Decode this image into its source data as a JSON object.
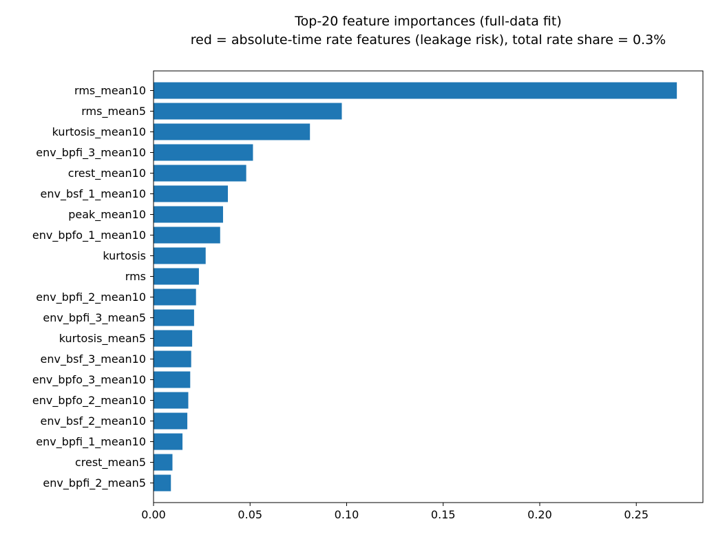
{
  "chart_data": {
    "type": "bar",
    "orientation": "horizontal",
    "title": "Top-20 feature importances (full-data fit)",
    "subtitle": "red = absolute-time rate features (leakage risk), total rate share = 0.3%",
    "xlabel": "",
    "ylabel": "",
    "categories": [
      "rms_mean10",
      "rms_mean5",
      "kurtosis_mean10",
      "env_bpfi_3_mean10",
      "crest_mean10",
      "env_bsf_1_mean10",
      "peak_mean10",
      "env_bpfo_1_mean10",
      "kurtosis",
      "rms",
      "env_bpfi_2_mean10",
      "env_bpfi_3_mean5",
      "kurtosis_mean5",
      "env_bsf_3_mean10",
      "env_bpfo_3_mean10",
      "env_bpfo_2_mean10",
      "env_bsf_2_mean10",
      "env_bpfi_1_mean10",
      "crest_mean5",
      "env_bpfi_2_mean5"
    ],
    "values": [
      0.271,
      0.0975,
      0.081,
      0.0515,
      0.048,
      0.0385,
      0.036,
      0.0345,
      0.027,
      0.0235,
      0.022,
      0.021,
      0.02,
      0.0195,
      0.019,
      0.018,
      0.0175,
      0.015,
      0.0098,
      0.009
    ],
    "xlim": [
      0,
      0.2845
    ],
    "xticks": [
      "0.00",
      "0.05",
      "0.10",
      "0.15",
      "0.20",
      "0.25"
    ],
    "xtick_values": [
      0,
      0.05,
      0.1,
      0.15,
      0.2,
      0.25
    ],
    "bar_color": "#1f77b4",
    "grid": false,
    "legend": "none"
  }
}
